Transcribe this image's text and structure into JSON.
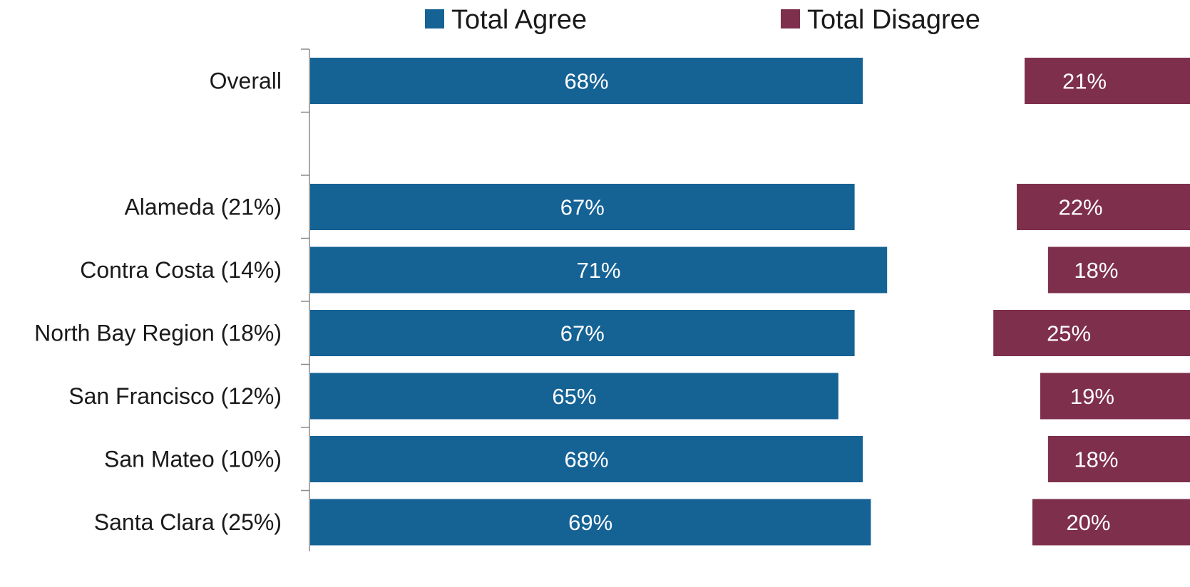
{
  "chart_data": {
    "type": "bar",
    "orientation": "horizontal",
    "categories": [
      "Overall",
      "",
      "Alameda (21%)",
      "Contra Costa (14%)",
      "North Bay Region (18%)",
      "San Francisco (12%)",
      "San Mateo (10%)",
      "Santa Clara (25%)"
    ],
    "series": [
      {
        "name": "Total Agree",
        "color": "#156295",
        "values": [
          68,
          null,
          67,
          71,
          67,
          65,
          68,
          69
        ],
        "labels": [
          "68%",
          "",
          "67%",
          "71%",
          "67%",
          "65%",
          "68%",
          "69%"
        ]
      },
      {
        "name": "Total Disagree",
        "color": "#7e2f4c",
        "values": [
          21,
          null,
          22,
          18,
          25,
          19,
          18,
          20
        ],
        "labels": [
          "21%",
          "",
          "22%",
          "18%",
          "25%",
          "19%",
          "18%",
          "20%"
        ]
      }
    ],
    "legend": "top",
    "grid": false,
    "axis_color": "#8c8c8c"
  }
}
